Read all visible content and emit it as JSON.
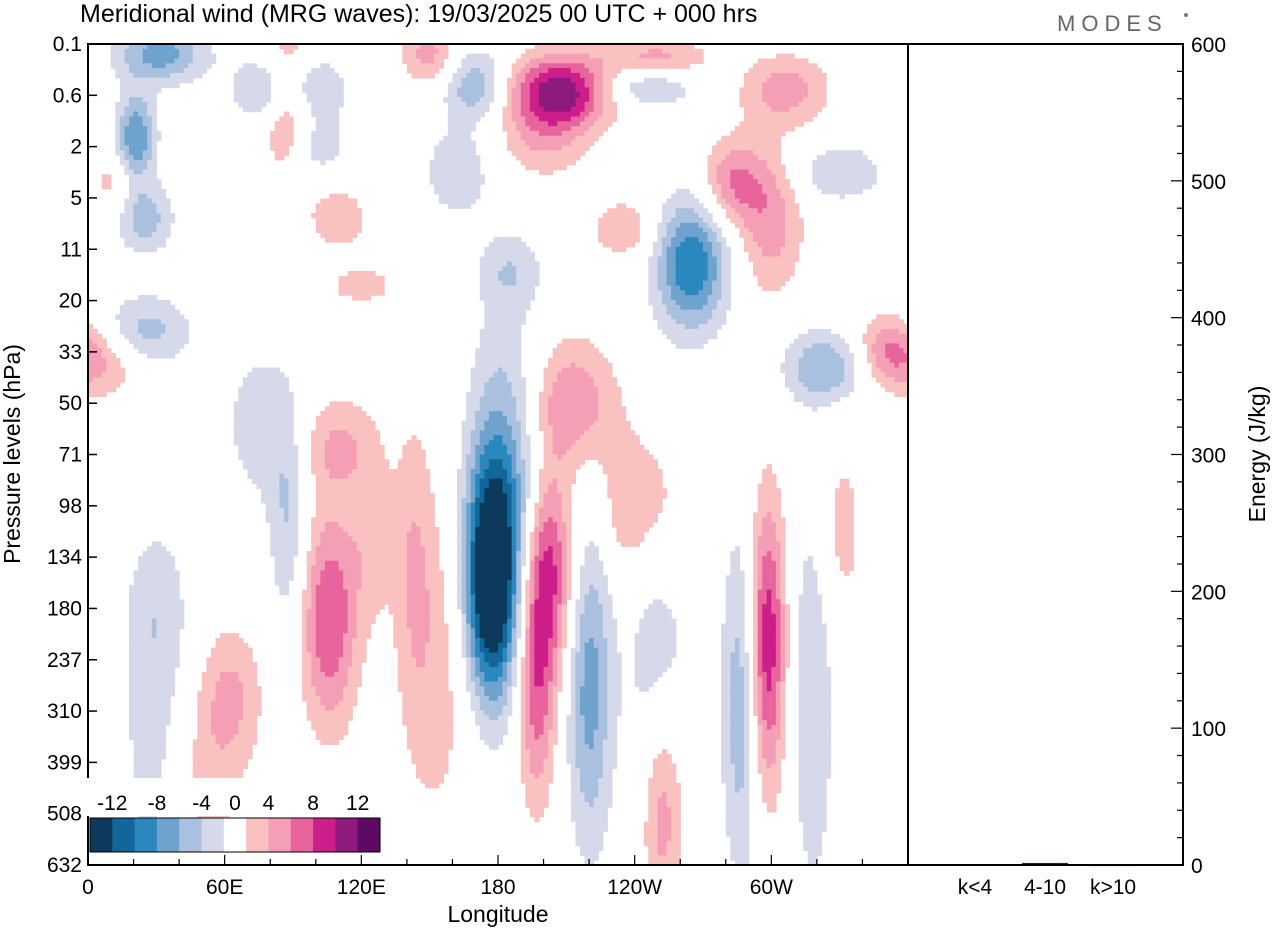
{
  "header": {
    "title": "Meridional wind (MRG waves):  19/03/2025  00 UTC  + 000 hrs",
    "brand": "MODES"
  },
  "colors": {
    "neg": [
      "#0d3a5c",
      "#11669a",
      "#2b88bf",
      "#6fa3cd",
      "#a9c1de",
      "#d5d9ea"
    ],
    "pos": [
      "#f9c1c0",
      "#f49fb5",
      "#e8649c",
      "#cc1f89",
      "#8e1a7d",
      "#5c0a63"
    ],
    "zero": "#ffffff",
    "bar": "#1f1f66"
  },
  "chart_data": [
    {
      "type": "heatmap",
      "title": "Meridional wind (MRG waves):  19/03/2025  00 UTC  + 000 hrs",
      "xlabel": "Longitude",
      "ylabel": "Pressure levels (hPa)",
      "x_ticks": [
        "0",
        "60E",
        "120E",
        "180",
        "120W",
        "60W"
      ],
      "x_tick_values": [
        0,
        60,
        120,
        180,
        240,
        300
      ],
      "xlim": [
        0,
        360
      ],
      "y_ticks": [
        "0.1",
        "0.6",
        "2",
        "5",
        "11",
        "20",
        "33",
        "50",
        "71",
        "98",
        "134",
        "180",
        "237",
        "310",
        "399",
        "508",
        "632"
      ],
      "colorbar_labels": [
        "-12",
        "-8",
        "-4",
        "0",
        "4",
        "8",
        "12"
      ],
      "levels": [
        -14,
        -12,
        -10,
        -8,
        -6,
        -4,
        -2,
        2,
        4,
        6,
        8,
        10,
        12,
        14
      ],
      "blobs": [
        {
          "lon": 177,
          "lev": 10.5,
          "amp": -16,
          "wx": 8,
          "wy": 1.6
        },
        {
          "lon": 184,
          "lev": 8.3,
          "amp": -6,
          "wx": 12,
          "wy": 2.2
        },
        {
          "lon": 202,
          "lev": 10.2,
          "amp": 9,
          "wx": 8,
          "wy": 1.4
        },
        {
          "lon": 197,
          "lev": 12.6,
          "amp": 7,
          "wx": 6,
          "wy": 1.6
        },
        {
          "lon": 220,
          "lev": 12.5,
          "amp": -7,
          "wx": 7,
          "wy": 2.2
        },
        {
          "lon": 250,
          "lev": 12.2,
          "amp": -4,
          "wx": 10,
          "wy": 3.0
        },
        {
          "lon": 252,
          "lev": 14.9,
          "amp": 7,
          "wx": 7,
          "wy": 1.6
        },
        {
          "lon": 298,
          "lev": 11.7,
          "amp": 10,
          "wx": 6,
          "wy": 2.0
        },
        {
          "lon": 287,
          "lev": 12.8,
          "amp": -6,
          "wx": 6,
          "wy": 2.4
        },
        {
          "lon": 318,
          "lev": 12.5,
          "amp": -4,
          "wx": 7,
          "wy": 3.0
        },
        {
          "lon": 106,
          "lev": 11.2,
          "amp": 8,
          "wx": 9,
          "wy": 1.5
        },
        {
          "lon": 63,
          "lev": 12.7,
          "amp": 4,
          "wx": 10,
          "wy": 1.0
        },
        {
          "lon": 88,
          "lev": 9.4,
          "amp": -4,
          "wx": 6,
          "wy": 1.6
        },
        {
          "lon": 153,
          "lev": 12.2,
          "amp": 3,
          "wx": 12,
          "wy": 2.5
        },
        {
          "lon": 212,
          "lev": 7.0,
          "amp": 6,
          "wx": 14,
          "wy": 0.9
        },
        {
          "lon": 250,
          "lev": 9.0,
          "amp": 4,
          "wx": 10,
          "wy": 1.2
        },
        {
          "lon": 330,
          "lev": 9.5,
          "amp": 3,
          "wx": 8,
          "wy": 1.4
        },
        {
          "lon": 110,
          "lev": 7.8,
          "amp": 4,
          "wx": 12,
          "wy": 0.7
        },
        {
          "lon": 88,
          "lev": 1.1,
          "amp": 9,
          "wx": 8,
          "wy": 0.9
        },
        {
          "lon": 21,
          "lev": 1.8,
          "amp": -8,
          "wx": 6,
          "wy": 0.6
        },
        {
          "lon": 32,
          "lev": 0.2,
          "amp": -7,
          "wx": 14,
          "wy": 0.4
        },
        {
          "lon": 88,
          "lev": 0.9,
          "amp": -9,
          "wx": 14,
          "wy": 0.5
        },
        {
          "lon": 208,
          "lev": 0.9,
          "amp": 11,
          "wx": 16,
          "wy": 0.5
        },
        {
          "lon": 170,
          "lev": 0.8,
          "amp": -6,
          "wx": 10,
          "wy": 0.5
        },
        {
          "lon": 150,
          "lev": 0.2,
          "amp": 5,
          "wx": 9,
          "wy": 0.4
        },
        {
          "lon": 250,
          "lev": 0.3,
          "amp": 5,
          "wx": 16,
          "wy": 0.3
        },
        {
          "lon": 245,
          "lev": 0.8,
          "amp": -5,
          "wx": 16,
          "wy": 0.3
        },
        {
          "lon": 306,
          "lev": 0.9,
          "amp": 5,
          "wx": 14,
          "wy": 0.5
        },
        {
          "lon": 330,
          "lev": 2.5,
          "amp": -4,
          "wx": 14,
          "wy": 0.4
        },
        {
          "lon": 283,
          "lev": 2.7,
          "amp": 6,
          "wx": 10,
          "wy": 0.6
        },
        {
          "lon": 265,
          "lev": 4.3,
          "amp": -10,
          "wx": 11,
          "wy": 0.9
        },
        {
          "lon": 300,
          "lev": 3.5,
          "amp": 5,
          "wx": 10,
          "wy": 1.0
        },
        {
          "lon": 235,
          "lev": 3.6,
          "amp": 4,
          "wx": 10,
          "wy": 0.4
        },
        {
          "lon": 200,
          "lev": 1.8,
          "amp": 4,
          "wx": 14,
          "wy": 0.6
        },
        {
          "lon": 98,
          "lev": 2.0,
          "amp": -4,
          "wx": 10,
          "wy": 0.4
        },
        {
          "lon": 110,
          "lev": 3.4,
          "amp": 4,
          "wx": 9,
          "wy": 0.4
        },
        {
          "lon": 25,
          "lev": 3.4,
          "amp": -5,
          "wx": 9,
          "wy": 0.5
        },
        {
          "lon": 10,
          "lev": 2.7,
          "amp": 3,
          "wx": 7,
          "wy": 0.4
        },
        {
          "lon": 162,
          "lev": 2.5,
          "amp": -4,
          "wx": 10,
          "wy": 0.6
        },
        {
          "lon": 25,
          "lev": 5.6,
          "amp": -5,
          "wx": 14,
          "wy": 0.5
        },
        {
          "lon": 8,
          "lev": 6.2,
          "amp": 4,
          "wx": 12,
          "wy": 0.5
        },
        {
          "lon": 350,
          "lev": 6.0,
          "amp": 6,
          "wx": 10,
          "wy": 0.5
        },
        {
          "lon": 325,
          "lev": 6.3,
          "amp": -6,
          "wx": 14,
          "wy": 0.5
        },
        {
          "lon": 120,
          "lev": 4.7,
          "amp": 3,
          "wx": 12,
          "wy": 0.3
        },
        {
          "lon": 185,
          "lev": 4.4,
          "amp": -3,
          "wx": 10,
          "wy": 0.5
        },
        {
          "lon": 75,
          "lev": 7.4,
          "amp": -3,
          "wx": 12,
          "wy": 1.2
        },
        {
          "lon": 125,
          "lev": 9.6,
          "amp": 3,
          "wx": 7,
          "wy": 1.1
        },
        {
          "lon": 143,
          "lev": 10.0,
          "amp": 3,
          "wx": 6,
          "wy": 2.0
        },
        {
          "lon": 235,
          "lev": 9.0,
          "amp": 3,
          "wx": 8,
          "wy": 1.0
        },
        {
          "lon": 30,
          "lev": 11.0,
          "amp": -3,
          "wx": 10,
          "wy": 1.2
        },
        {
          "lon": 30,
          "lev": 14.0,
          "amp": -3,
          "wx": 12,
          "wy": 2.0
        },
        {
          "lon": 50,
          "lev": 14.5,
          "amp": 3,
          "wx": 12,
          "wy": 1.5
        }
      ]
    },
    {
      "type": "bar",
      "categories": [
        "k<4",
        "4-10",
        "k>10"
      ],
      "values": [
        0.5,
        1.5,
        0.3
      ],
      "ylabel": "Energy (J/kg)",
      "ylim": [
        0,
        600
      ],
      "y_ticks": [
        "0",
        "100",
        "200",
        "300",
        "400",
        "500",
        "600"
      ]
    }
  ]
}
